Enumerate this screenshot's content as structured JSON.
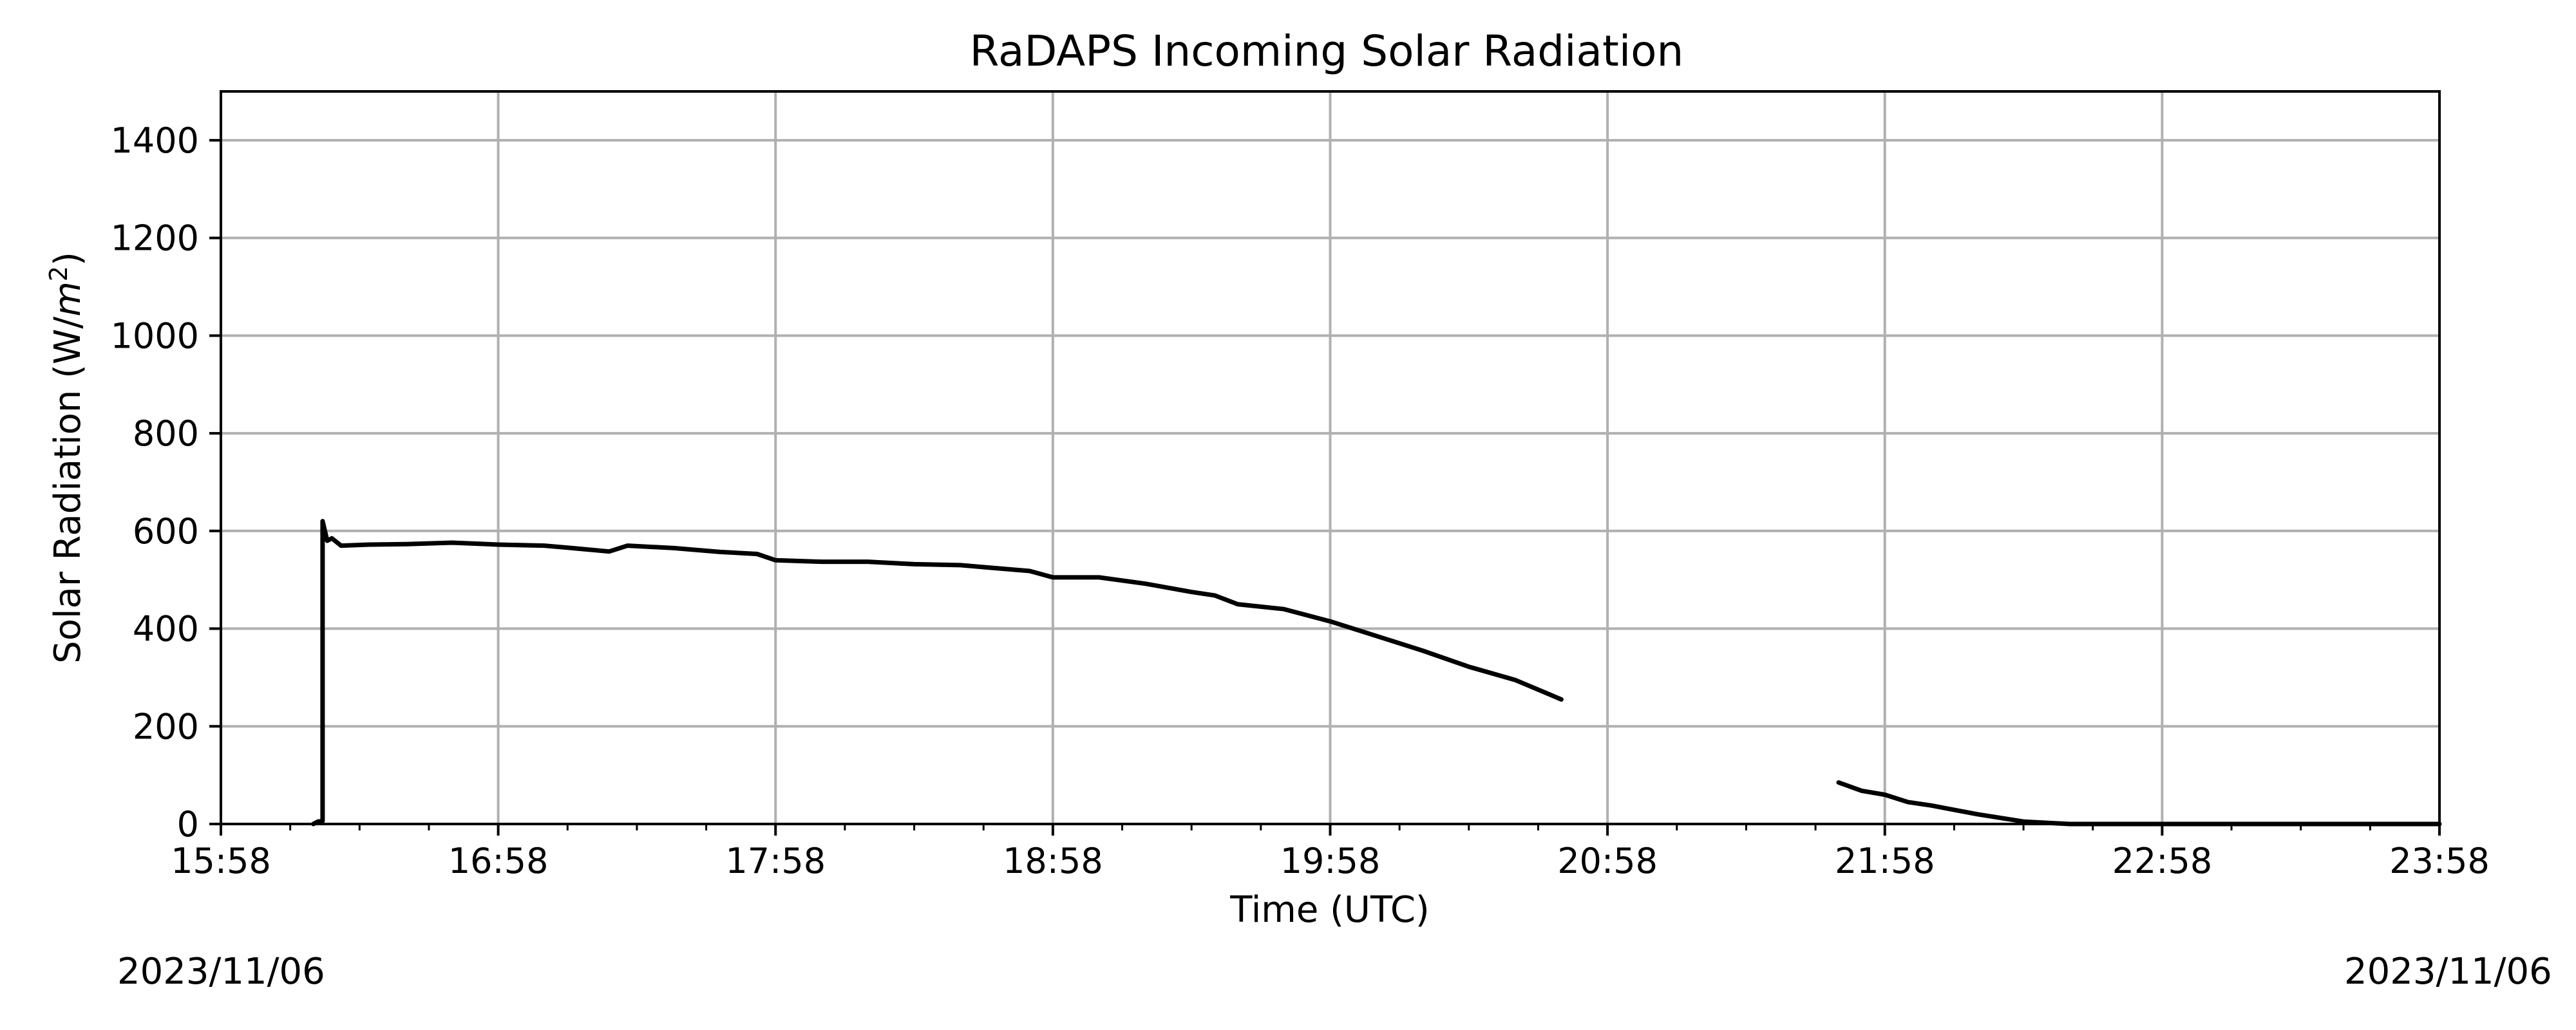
{
  "chart_data": {
    "type": "line",
    "title": "RaDAPS Incoming Solar Radiation",
    "xlabel": "Time (UTC)",
    "ylabel": "Solar Radiation (W/m²)",
    "ylabel_main": "Solar Radiation (W/",
    "ylabel_unit": "m",
    "ylabel_exp": "2",
    "ylabel_close": ")",
    "xlim": [
      "15:58",
      "23:58"
    ],
    "ylim": [
      0,
      1500
    ],
    "grid": true,
    "x_ticks": [
      "15:58",
      "16:58",
      "17:58",
      "18:58",
      "19:58",
      "20:58",
      "21:58",
      "22:58",
      "23:58"
    ],
    "y_ticks": [
      0,
      200,
      400,
      600,
      800,
      1000,
      1200,
      1400
    ],
    "date_start": "2023/11/06",
    "date_end": "2023/11/06",
    "line_color": "#000000",
    "series": [
      {
        "segments": [
          [
            [
              "16:18",
              0
            ],
            [
              "16:19",
              5
            ],
            [
              "16:20",
              6
            ],
            [
              "16:20",
              620
            ],
            [
              "16:21",
              580
            ],
            [
              "16:22",
              585
            ],
            [
              "16:24",
              570
            ],
            [
              "16:30",
              572
            ],
            [
              "16:38",
              573
            ],
            [
              "16:48",
              576
            ],
            [
              "16:58",
              572
            ],
            [
              "17:08",
              570
            ],
            [
              "17:14",
              565
            ],
            [
              "17:22",
              558
            ],
            [
              "17:26",
              570
            ],
            [
              "17:36",
              565
            ],
            [
              "17:46",
              557
            ],
            [
              "17:54",
              553
            ],
            [
              "17:58",
              540
            ],
            [
              "18:08",
              537
            ],
            [
              "18:18",
              537
            ],
            [
              "18:28",
              532
            ],
            [
              "18:38",
              530
            ],
            [
              "18:48",
              522
            ],
            [
              "18:53",
              518
            ],
            [
              "18:58",
              505
            ],
            [
              "19:08",
              505
            ],
            [
              "19:18",
              492
            ],
            [
              "19:28",
              475
            ],
            [
              "19:33",
              468
            ],
            [
              "19:38",
              450
            ],
            [
              "19:48",
              440
            ],
            [
              "19:58",
              415
            ],
            [
              "20:08",
              385
            ],
            [
              "20:18",
              355
            ],
            [
              "20:28",
              322
            ],
            [
              "20:38",
              295
            ],
            [
              "20:48",
              255
            ]
          ],
          [
            [
              "21:48",
              85
            ],
            [
              "21:53",
              68
            ],
            [
              "21:58",
              60
            ],
            [
              "22:03",
              45
            ],
            [
              "22:08",
              38
            ],
            [
              "22:18",
              20
            ],
            [
              "22:28",
              5
            ],
            [
              "22:38",
              0
            ],
            [
              "23:58",
              0
            ]
          ]
        ]
      }
    ]
  }
}
